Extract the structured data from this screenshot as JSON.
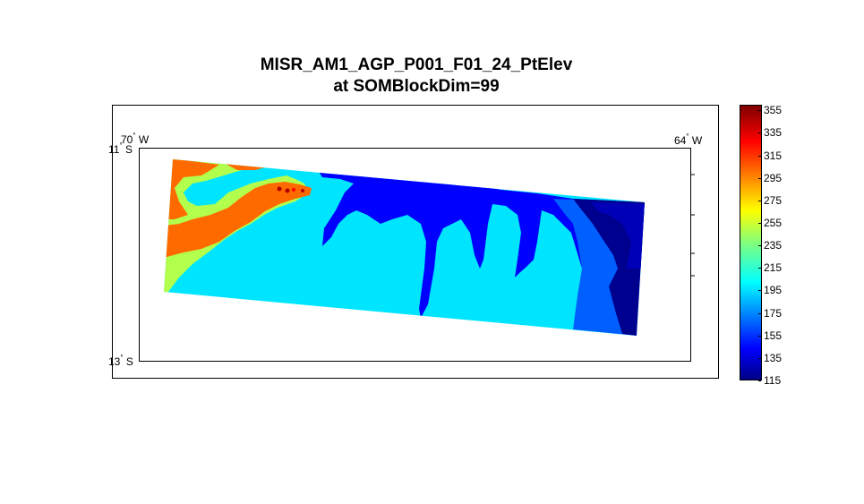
{
  "title": {
    "line1": "MISR_AM1_AGP_P001_F01_24_PtElev",
    "line2": "at SOMBlockDim=99"
  },
  "map": {
    "grid_labels": {
      "west_lon": {
        "value": "70",
        "hemisphere": "W"
      },
      "east_lon": {
        "value": "64",
        "hemisphere": "W"
      },
      "north_lat": {
        "value": "11",
        "hemisphere": "S"
      },
      "south_lat": {
        "value": "13",
        "hemisphere": "S"
      }
    },
    "degree_symbol": "°"
  },
  "colorbar": {
    "min": 115,
    "max": 360,
    "ticks": [
      "355",
      "335",
      "315",
      "295",
      "275",
      "255",
      "235",
      "215",
      "195",
      "175",
      "155",
      "135",
      "115"
    ],
    "colors": {
      "dark_blue": "#00007f",
      "blue": "#0000ff",
      "mid_blue": "#0060ff",
      "cyan": "#00e5ff",
      "light_green": "#b2ff4d",
      "orange": "#ff6a00",
      "red": "#ff0000",
      "dark_red": "#8b0000"
    }
  }
}
